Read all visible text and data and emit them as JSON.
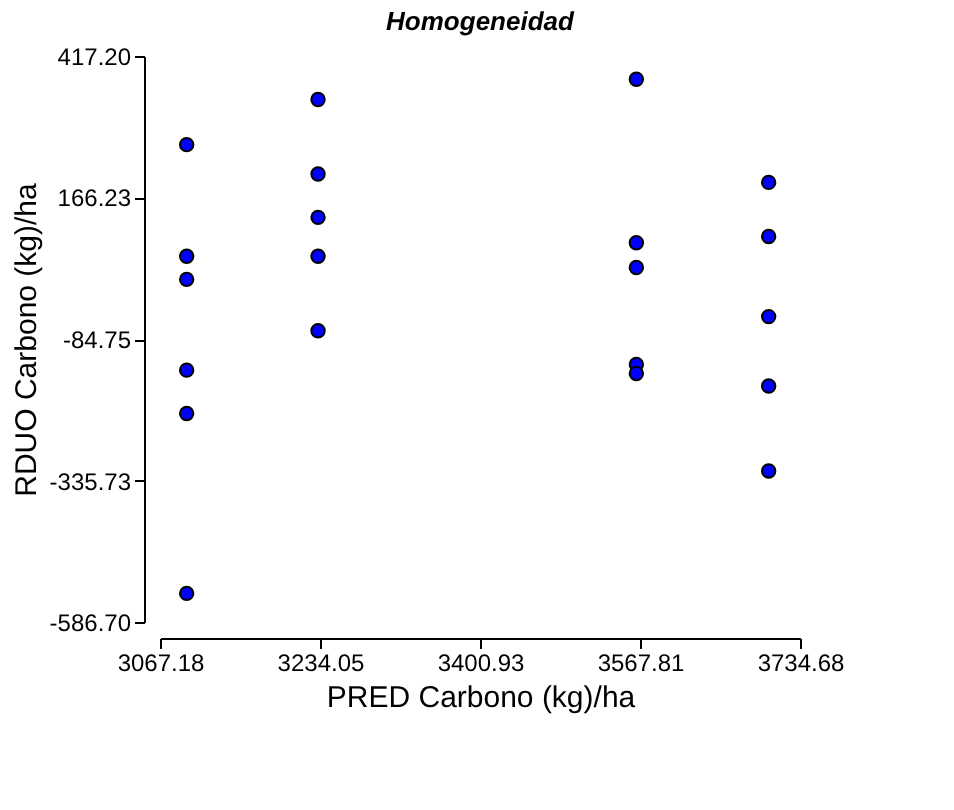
{
  "chart_data": {
    "type": "scatter",
    "title": "Homogeneidad",
    "xlabel": "PRED Carbono (kg)/ha",
    "ylabel": "RDUO Carbono (kg)/ha",
    "xlim": [
      3067.18,
      3734.68
    ],
    "ylim": [
      -586.7,
      417.2
    ],
    "xticks": [
      {
        "value": 3067.18,
        "label": "3067.18"
      },
      {
        "value": 3234.05,
        "label": "3234.05"
      },
      {
        "value": 3400.93,
        "label": "3400.93"
      },
      {
        "value": 3567.81,
        "label": "3567.81"
      },
      {
        "value": 3734.68,
        "label": "3734.68"
      }
    ],
    "yticks": [
      {
        "value": -586.7,
        "label": "-586.70"
      },
      {
        "value": -335.73,
        "label": "-335.73"
      },
      {
        "value": -84.75,
        "label": "-84.75"
      },
      {
        "value": 166.23,
        "label": "166.23"
      },
      {
        "value": 417.2,
        "label": "417.20"
      }
    ],
    "grid": false,
    "marker": "circle",
    "legend": false,
    "series": [
      {
        "color": "#0000ff",
        "x": [
          3095,
          3095,
          3095,
          3095,
          3095,
          3095,
          3232,
          3232,
          3232,
          3232,
          3232,
          3564,
          3564,
          3564,
          3564,
          3564,
          3702,
          3702,
          3702,
          3702,
          3702
        ],
        "values": [
          260,
          62,
          21,
          -140,
          -217,
          -536,
          340,
          208,
          131,
          62,
          -70,
          376,
          86,
          42,
          -130,
          -146,
          193,
          97,
          -45,
          -168,
          -319
        ]
      }
    ]
  }
}
